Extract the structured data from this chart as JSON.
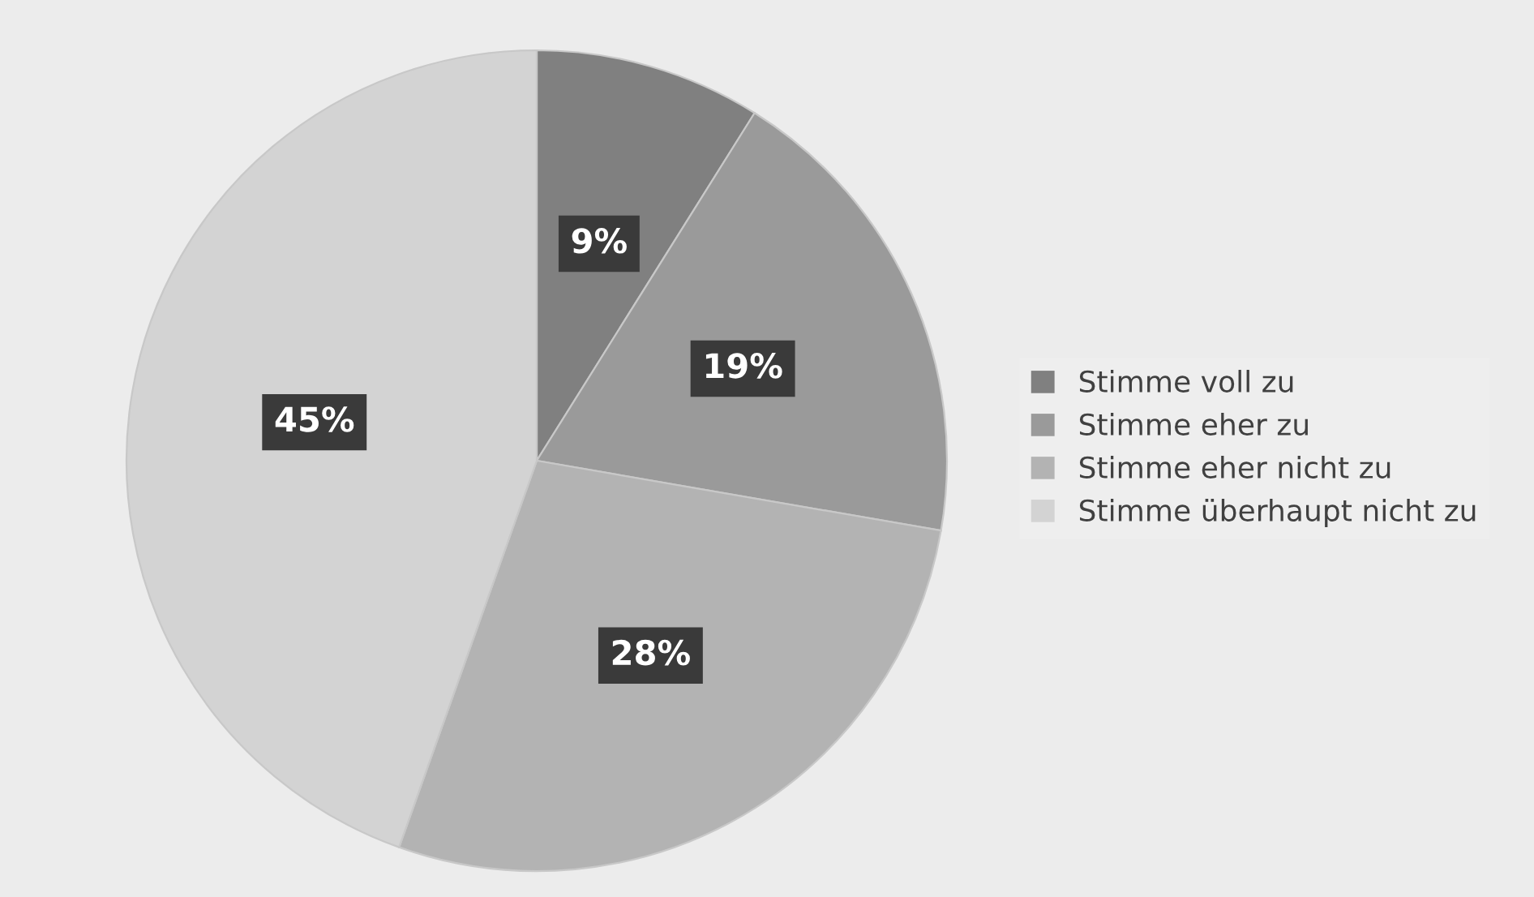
{
  "chart_data": {
    "type": "pie",
    "categories": [
      "Stimme voll zu",
      "Stimme eher zu",
      "Stimme eher nicht zu",
      "Stimme überhaupt nicht zu"
    ],
    "values": [
      9,
      19,
      28,
      45
    ],
    "colors": [
      "#808080",
      "#9a9a9a",
      "#b3b3b3",
      "#d3d3d3"
    ],
    "value_labels": [
      "9%",
      "19%",
      "28%",
      "45%"
    ],
    "legend": "right"
  }
}
